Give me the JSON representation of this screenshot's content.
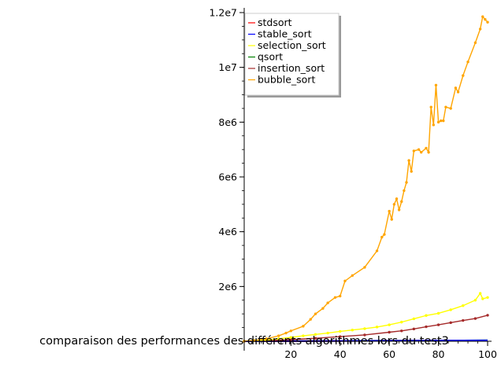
{
  "chart_data": {
    "type": "line",
    "title": "comparaison des performances des différents algorithmes lors du test3",
    "xlabel": "",
    "ylabel": "",
    "xlim": [
      1,
      100
    ],
    "ylim": [
      0,
      12000000
    ],
    "x_ticks": [
      {
        "value": 20,
        "label": "20"
      },
      {
        "value": 40,
        "label": "40"
      },
      {
        "value": 60,
        "label": "60"
      },
      {
        "value": 80,
        "label": "80"
      },
      {
        "value": 100,
        "label": "100"
      }
    ],
    "y_ticks": [
      {
        "value": 2000000,
        "label": "2e6"
      },
      {
        "value": 4000000,
        "label": "4e6"
      },
      {
        "value": 6000000,
        "label": "6e6"
      },
      {
        "value": 8000000,
        "label": "8e6"
      },
      {
        "value": 10000000,
        "label": "1e7"
      },
      {
        "value": 12000000,
        "label": "1.2e7"
      }
    ],
    "grid": false,
    "legend_position": "top-left",
    "series": [
      {
        "name": "stdsort",
        "color": "#ff0000",
        "x": [
          1,
          10,
          20,
          30,
          40,
          50,
          60,
          70,
          80,
          90,
          100
        ],
        "y": [
          0,
          2000,
          5000,
          8000,
          11000,
          14000,
          17000,
          20000,
          23000,
          26000,
          30000
        ]
      },
      {
        "name": "stable_sort",
        "color": "#0000ff",
        "x": [
          1,
          10,
          20,
          30,
          40,
          50,
          60,
          70,
          80,
          90,
          100
        ],
        "y": [
          0,
          2500,
          6000,
          9000,
          12000,
          15000,
          18000,
          21000,
          25000,
          28000,
          32000
        ]
      },
      {
        "name": "selection_sort",
        "color": "#ffff00",
        "x": [
          1,
          5,
          10,
          15,
          20,
          25,
          30,
          35,
          40,
          45,
          50,
          55,
          60,
          65,
          70,
          75,
          80,
          85,
          90,
          95,
          97,
          98,
          100
        ],
        "y": [
          2000,
          20000,
          50000,
          90000,
          140000,
          200000,
          250000,
          300000,
          360000,
          410000,
          460000,
          520000,
          600000,
          700000,
          820000,
          940000,
          1020000,
          1150000,
          1300000,
          1500000,
          1750000,
          1550000,
          1600000
        ]
      },
      {
        "name": "qsort",
        "color": "#008000",
        "x": [
          1,
          10,
          20,
          30,
          40,
          50,
          60,
          70,
          80,
          90,
          100
        ],
        "y": [
          0,
          3000,
          7000,
          10000,
          14000,
          17000,
          20000,
          24000,
          27000,
          30000,
          35000
        ]
      },
      {
        "name": "insertion_sort",
        "color": "#a52a2a",
        "x": [
          1,
          10,
          20,
          30,
          40,
          50,
          60,
          65,
          70,
          75,
          80,
          85,
          90,
          95,
          100
        ],
        "y": [
          1000,
          20000,
          60000,
          110000,
          170000,
          230000,
          330000,
          380000,
          450000,
          530000,
          600000,
          680000,
          760000,
          830000,
          950000
        ]
      },
      {
        "name": "bubble_sort",
        "color": "#ffa500",
        "x": [
          1,
          5,
          10,
          15,
          18,
          20,
          25,
          28,
          30,
          33,
          35,
          38,
          40,
          42,
          45,
          50,
          55,
          57,
          58,
          60,
          61,
          62,
          63,
          64,
          65,
          66,
          67,
          68,
          69,
          70,
          72,
          73,
          75,
          76,
          77,
          78,
          79,
          80,
          81,
          82,
          83,
          85,
          87,
          88,
          90,
          92,
          95,
          97,
          98,
          99,
          100
        ],
        "y": [
          5000,
          30000,
          90000,
          200000,
          300000,
          380000,
          550000,
          800000,
          1000000,
          1200000,
          1400000,
          1600000,
          1650000,
          2200000,
          2400000,
          2700000,
          3300000,
          3800000,
          3900000,
          4750000,
          4450000,
          5000000,
          5200000,
          4800000,
          5100000,
          5500000,
          5800000,
          6600000,
          6200000,
          6950000,
          7000000,
          6900000,
          7050000,
          6900000,
          8550000,
          7900000,
          9350000,
          8000000,
          8050000,
          8050000,
          8550000,
          8500000,
          9250000,
          9100000,
          9700000,
          10200000,
          10900000,
          11400000,
          11850000,
          11750000,
          11650000
        ]
      }
    ]
  }
}
